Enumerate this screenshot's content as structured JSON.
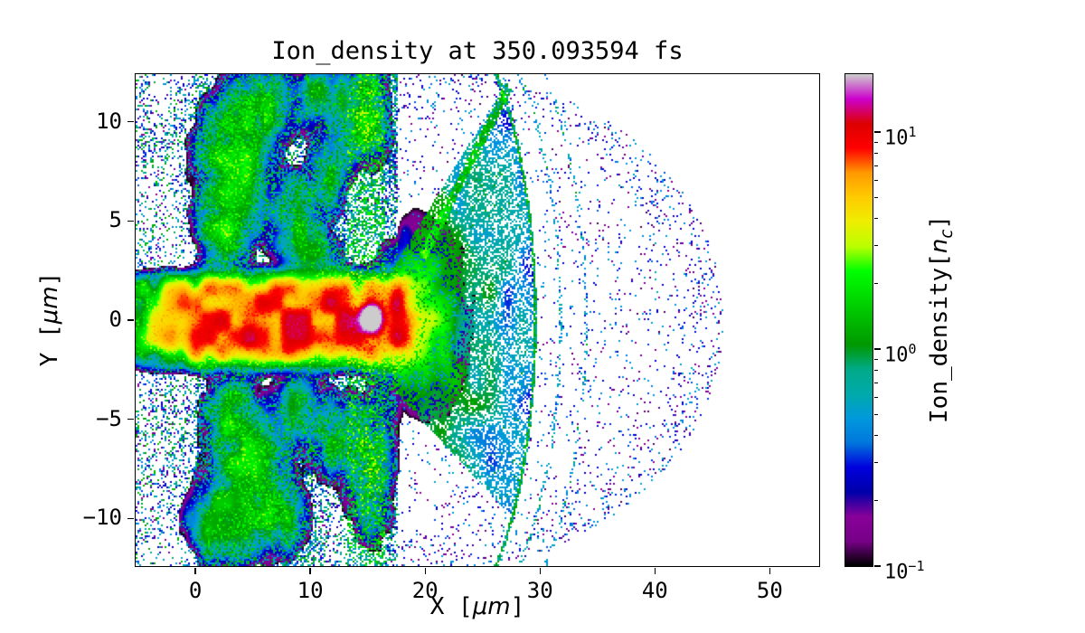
{
  "figure": {
    "background": "#ffffff"
  },
  "chart_data": {
    "type": "heatmap",
    "title": "Ion_density at 350.093594 fs",
    "time_fs": 350.093594,
    "xlabel": {
      "pre": "X [",
      "math": "μm",
      "post": "]"
    },
    "ylabel": {
      "pre": "Y [",
      "math": "μm",
      "post": "]"
    },
    "x_range": [
      -5.2,
      54.3
    ],
    "y_range": [
      -12.4,
      12.4
    ],
    "x_ticks": [
      0,
      10,
      20,
      30,
      40,
      50
    ],
    "x_tick_labels": [
      "0",
      "10",
      "20",
      "30",
      "40",
      "50"
    ],
    "y_ticks": [
      10,
      5,
      0,
      -5,
      -10
    ],
    "y_tick_labels": [
      "10",
      "5",
      "0",
      "−5",
      "−10"
    ],
    "grid": false,
    "background_value": "white (empty bins)",
    "colorbar": {
      "label": {
        "pre": "Ion_density[",
        "math": "n",
        "sub": "c",
        "post": "]"
      },
      "scale": "log",
      "vmin": 0.1,
      "vmax": 18.5,
      "ticks": [
        {
          "label_base": "10",
          "label_exp": "1",
          "value": 10
        },
        {
          "label_base": "10",
          "label_exp": "0",
          "value": 1
        },
        {
          "label_base": "10",
          "label_exp": "−1",
          "value": 0.1
        }
      ],
      "minor_ticks": [
        0.2,
        0.3,
        0.4,
        0.5,
        0.6,
        0.7,
        0.8,
        0.9,
        2,
        3,
        4,
        5,
        6,
        7,
        8,
        9
      ]
    },
    "colormap": {
      "name": "nipy_spectral",
      "stops": [
        {
          "p": 0.0,
          "rgb": [
            0.0,
            0.0,
            0.0
          ]
        },
        {
          "p": 0.05,
          "rgb": [
            0.4667,
            0.0,
            0.5333
          ]
        },
        {
          "p": 0.1,
          "rgb": [
            0.5333,
            0.0,
            0.6
          ]
        },
        {
          "p": 0.15,
          "rgb": [
            0.0,
            0.0,
            0.6667
          ]
        },
        {
          "p": 0.2,
          "rgb": [
            0.0,
            0.0,
            0.8667
          ]
        },
        {
          "p": 0.25,
          "rgb": [
            0.0,
            0.4667,
            0.8667
          ]
        },
        {
          "p": 0.3,
          "rgb": [
            0.0,
            0.6,
            0.8667
          ]
        },
        {
          "p": 0.35,
          "rgb": [
            0.0,
            0.6667,
            0.6667
          ]
        },
        {
          "p": 0.4,
          "rgb": [
            0.0,
            0.6667,
            0.5333
          ]
        },
        {
          "p": 0.45,
          "rgb": [
            0.0,
            0.6,
            0.0
          ]
        },
        {
          "p": 0.5,
          "rgb": [
            0.0,
            0.7333,
            0.0
          ]
        },
        {
          "p": 0.55,
          "rgb": [
            0.0,
            0.8667,
            0.0
          ]
        },
        {
          "p": 0.6,
          "rgb": [
            0.0,
            1.0,
            0.0
          ]
        },
        {
          "p": 0.65,
          "rgb": [
            0.7333,
            1.0,
            0.0
          ]
        },
        {
          "p": 0.7,
          "rgb": [
            0.9333,
            0.9333,
            0.0
          ]
        },
        {
          "p": 0.75,
          "rgb": [
            1.0,
            0.8,
            0.0
          ]
        },
        {
          "p": 0.8,
          "rgb": [
            1.0,
            0.6,
            0.0
          ]
        },
        {
          "p": 0.85,
          "rgb": [
            1.0,
            0.0,
            0.0
          ]
        },
        {
          "p": 0.9,
          "rgb": [
            0.8667,
            0.0,
            0.0
          ]
        },
        {
          "p": 0.95,
          "rgb": [
            0.8,
            0.0,
            0.8
          ]
        },
        {
          "p": 1.0,
          "rgb": [
            0.8,
            0.8,
            0.8
          ]
        }
      ]
    },
    "features": [
      {
        "type": "jet",
        "x0": -5.2,
        "x1": 17.5,
        "taper_w": 1.3,
        "half_width": 1.95,
        "amp": 8.5,
        "cap": 11.5,
        "ramp_x0": -6.5,
        "ramp_x1": 1.0,
        "noise_scale": 0.85
      },
      {
        "type": "blob",
        "cx": 15.35,
        "cy": 0.1,
        "sx": 0.55,
        "sy": 0.42,
        "amp": 30,
        "flat": true
      },
      {
        "type": "blob",
        "cx": 19.6,
        "cy": 0.0,
        "sx": 2.0,
        "sy": 2.3,
        "amp": 1.5
      },
      {
        "type": "blob",
        "cx": 3.5,
        "cy": 7.8,
        "sx": 1.8,
        "sy": 2.1,
        "amp": 1.6
      },
      {
        "type": "blob",
        "cx": 2.4,
        "cy": 4.4,
        "sx": 1.2,
        "sy": 1.0,
        "amp": 1.2
      },
      {
        "type": "blob",
        "cx": 8.5,
        "cy": 5.0,
        "sx": 1.1,
        "sy": 1.3,
        "amp": 1.0
      },
      {
        "type": "blob",
        "cx": 10.6,
        "cy": 3.1,
        "sx": 1.1,
        "sy": 0.9,
        "amp": 1.1
      },
      {
        "type": "blob",
        "cx": 11.5,
        "cy": 7.4,
        "sx": 1.0,
        "sy": 1.2,
        "amp": 0.85
      },
      {
        "type": "blob",
        "cx": 6.5,
        "cy": 10.8,
        "sx": 1.5,
        "sy": 1.1,
        "amp": 0.9
      },
      {
        "type": "blob",
        "cx": 10.8,
        "cy": 11.3,
        "sx": 1.2,
        "sy": 0.9,
        "amp": 0.9
      },
      {
        "type": "blob",
        "cx": 14.6,
        "cy": 10.6,
        "sx": 1.3,
        "sy": 1.5,
        "amp": 1.3
      },
      {
        "type": "blob",
        "cx": 4.5,
        "cy": -7.8,
        "sx": 1.9,
        "sy": 2.0,
        "amp": 1.5
      },
      {
        "type": "blob",
        "cx": 2.9,
        "cy": -4.6,
        "sx": 1.2,
        "sy": 1.0,
        "amp": 1.1
      },
      {
        "type": "blob",
        "cx": 9.0,
        "cy": -4.3,
        "sx": 1.0,
        "sy": 1.0,
        "amp": 0.9
      },
      {
        "type": "blob",
        "cx": 12.0,
        "cy": -5.8,
        "sx": 1.3,
        "sy": 1.2,
        "amp": 0.9
      },
      {
        "type": "blob",
        "cx": 15.2,
        "cy": -7.5,
        "sx": 1.2,
        "sy": 2.0,
        "amp": 0.95
      },
      {
        "type": "blob",
        "cx": 2.0,
        "cy": -10.3,
        "sx": 1.6,
        "sy": 1.1,
        "amp": 1.1
      },
      {
        "type": "blob",
        "cx": 7.5,
        "cy": -9.7,
        "sx": 1.3,
        "sy": 1.2,
        "amp": 0.9
      },
      {
        "type": "speckle",
        "x0": -5.2,
        "x1": 17.6,
        "y0": -12.4,
        "y1": 12.4,
        "coverage": 0.8,
        "v_base": 0.14,
        "v_spread": 1.0,
        "patch_scale": 0.32,
        "fade_below_x": 0.0,
        "fade_factor": 0.5
      },
      {
        "type": "vband",
        "x0": 13.2,
        "x1": 16.6,
        "coverage": 0.5,
        "v_base": 0.3,
        "v_spread": 0.55
      },
      {
        "type": "fan",
        "cx": 21.0,
        "a": 8.6,
        "b": 15.5,
        "x_min": 17.2,
        "up_y0": 2.6,
        "up_slope": 0.95,
        "lo_y0": -3.5,
        "lo_slope": -0.62,
        "cov_axis": 0.85,
        "cov_edge": 0.5,
        "v_axis": 1.1,
        "v_edge": 0.38
      },
      {
        "type": "arc",
        "cx": 21.0,
        "cy": 0,
        "a": 8.6,
        "b": 15.5,
        "thick": 0.013,
        "v": 0.9,
        "coverage": 0.9,
        "x_min": 21.0
      },
      {
        "type": "arc",
        "cx": 21.0,
        "cy": 0,
        "a": 10.8,
        "b": 16.6,
        "thick": 0.011,
        "v": 0.5,
        "coverage": 0.33,
        "x_min": 22.0
      },
      {
        "type": "arc",
        "cx": 21.0,
        "cy": 0,
        "a": 13.0,
        "b": 18.0,
        "thick": 0.01,
        "v": 0.45,
        "coverage": 0.28,
        "x_min": 23.0
      },
      {
        "type": "line",
        "x0": 19.8,
        "y0": 3.2,
        "x1": 27.3,
        "y1": 11.8,
        "thick": 0.32,
        "v": 0.85,
        "coverage": 0.85
      },
      {
        "type": "halo",
        "cx": 20.5,
        "a": 25.5,
        "b": 12.6,
        "x_min": 16.0,
        "coverage": 0.045,
        "rim_lo": 0.82,
        "rim_coverage": 0.12,
        "v_base": 0.115,
        "v_spread": 0.7
      }
    ]
  }
}
